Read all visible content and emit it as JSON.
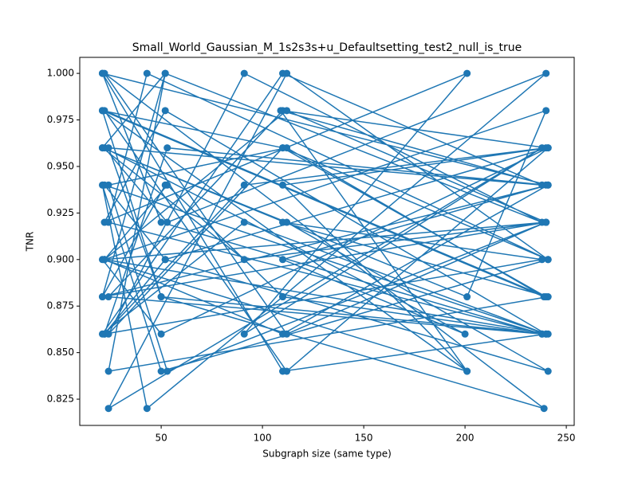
{
  "chart_data": {
    "type": "line",
    "title": "Small_World_Gaussian_M_1s2s3s+u_Defaultsetting_test2_null_is_true",
    "xlabel": "Subgraph size (same type)",
    "ylabel": "TNR",
    "color": "#1f77b4",
    "x": [
      21,
      110,
      240,
      52,
      22,
      201,
      91,
      238,
      24,
      112,
      241,
      50,
      21,
      43,
      110,
      240,
      53,
      22,
      200,
      110,
      241,
      21,
      52,
      238,
      91,
      24,
      110,
      240,
      22,
      112,
      241,
      50,
      21,
      201,
      109,
      240,
      53,
      22,
      238,
      110,
      241,
      24,
      52,
      21,
      91,
      240,
      112,
      22,
      239,
      50,
      21,
      110,
      241,
      43,
      24,
      238,
      110,
      53,
      22,
      240,
      201,
      21,
      112,
      241,
      52,
      22,
      91,
      240,
      110,
      24,
      238,
      50,
      21,
      241,
      110,
      22,
      240,
      53,
      24,
      112,
      239,
      21,
      201,
      110,
      241,
      52,
      22,
      240,
      91,
      21,
      110,
      238,
      24,
      50,
      241,
      22,
      112,
      240,
      21,
      52
    ],
    "values": [
      1.0,
      0.84,
      0.86,
      0.98,
      0.92,
      1.0,
      0.86,
      0.96,
      0.82,
      1.0,
      0.9,
      0.84,
      0.94,
      0.82,
      0.88,
      1.0,
      0.92,
      0.96,
      0.86,
      0.9,
      0.94,
      0.88,
      1.0,
      0.92,
      1.0,
      0.86,
      0.96,
      0.88,
      0.98,
      0.84,
      0.96,
      0.86,
      0.9,
      0.84,
      0.98,
      0.94,
      0.96,
      0.86,
      0.9,
      0.92,
      0.88,
      0.84,
      1.0,
      0.96,
      0.9,
      0.92,
      0.86,
      1.0,
      0.82,
      0.88,
      0.98,
      0.96,
      0.9,
      1.0,
      0.92,
      0.86,
      0.88,
      0.94,
      0.9,
      0.98,
      0.88,
      0.96,
      0.92,
      0.84,
      0.9,
      0.86,
      0.94,
      0.96,
      0.98,
      0.88,
      0.86,
      0.92,
      1.0,
      0.94,
      0.86,
      0.9,
      0.92,
      0.84,
      0.94,
      0.96,
      0.88,
      0.98,
      0.84,
      0.94,
      0.96,
      0.9,
      0.94,
      0.86,
      0.92,
      0.86,
      1.0,
      0.94,
      0.96,
      0.88,
      0.86,
      0.9,
      0.98,
      0.92,
      0.88,
      0.94
    ],
    "xlim": [
      9.8,
      253.9
    ],
    "xticks": [
      50,
      100,
      150,
      200,
      250
    ],
    "ylim": [
      0.8109,
      1.0086
    ],
    "yticks": [
      {
        "value": 0.825,
        "label": "0.825"
      },
      {
        "value": 0.85,
        "label": "0.850"
      },
      {
        "value": 0.875,
        "label": "0.875"
      },
      {
        "value": 0.9,
        "label": "0.900"
      },
      {
        "value": 0.925,
        "label": "0.925"
      },
      {
        "value": 0.95,
        "label": "0.950"
      },
      {
        "value": 0.975,
        "label": "0.975"
      },
      {
        "value": 1.0,
        "label": "1.000"
      }
    ]
  }
}
